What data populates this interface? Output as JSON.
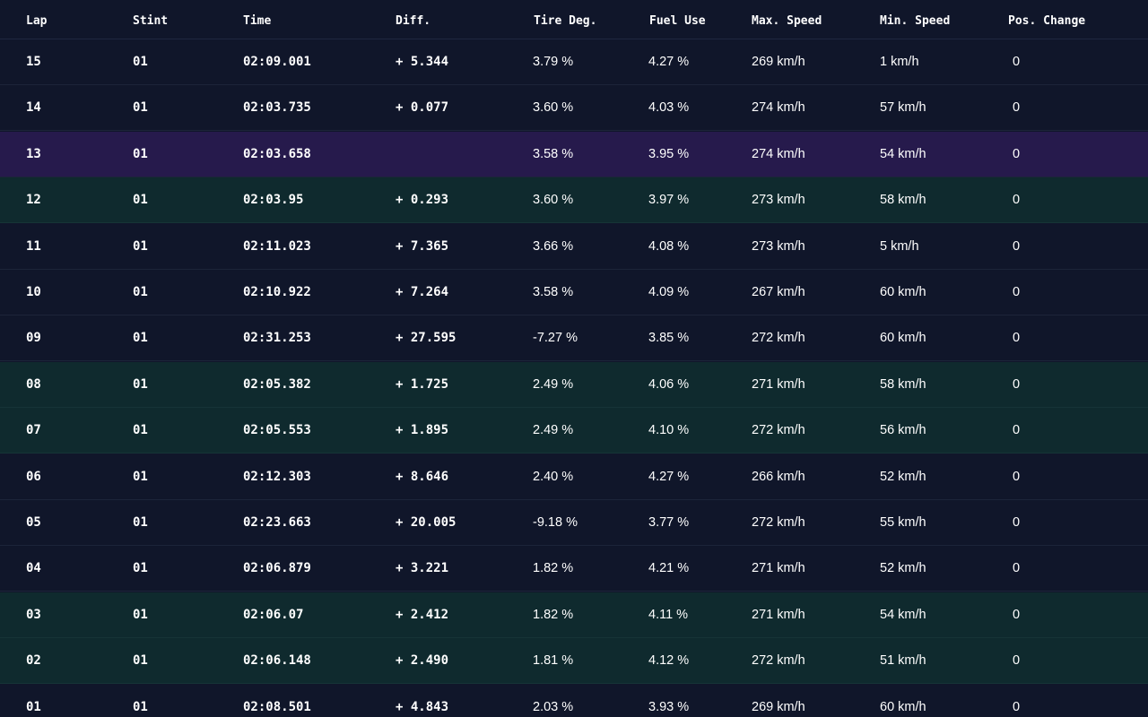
{
  "table": {
    "headers": {
      "lap": "Lap",
      "stint": "Stint",
      "time": "Time",
      "diff": "Diff.",
      "tire_deg": "Tire Deg.",
      "fuel_use": "Fuel Use",
      "max_speed": "Max. Speed",
      "min_speed": "Min. Speed",
      "pos_change": "Pos. Change"
    },
    "highlight_colors": {
      "fastest": "#261a4c",
      "improved": "#0f2a2e",
      "default": "#10162a"
    },
    "rows": [
      {
        "lap": "15",
        "stint": "01",
        "time": "02:09.001",
        "diff": "+ 5.344",
        "tire_deg": "3.79 %",
        "fuel_use": "4.27 %",
        "max_speed": "269 km/h",
        "min_speed": "1 km/h",
        "pos_change": "0",
        "highlight": "default"
      },
      {
        "lap": "14",
        "stint": "01",
        "time": "02:03.735",
        "diff": "+ 0.077",
        "tire_deg": "3.60 %",
        "fuel_use": "4.03 %",
        "max_speed": "274 km/h",
        "min_speed": "57 km/h",
        "pos_change": "0",
        "highlight": "default"
      },
      {
        "lap": "13",
        "stint": "01",
        "time": "02:03.658",
        "diff": "",
        "tire_deg": "3.58 %",
        "fuel_use": "3.95 %",
        "max_speed": "274 km/h",
        "min_speed": "54 km/h",
        "pos_change": "0",
        "highlight": "fastest"
      },
      {
        "lap": "12",
        "stint": "01",
        "time": "02:03.95",
        "diff": "+ 0.293",
        "tire_deg": "3.60 %",
        "fuel_use": "3.97 %",
        "max_speed": "273 km/h",
        "min_speed": "58 km/h",
        "pos_change": "0",
        "highlight": "improved"
      },
      {
        "lap": "11",
        "stint": "01",
        "time": "02:11.023",
        "diff": "+ 7.365",
        "tire_deg": "3.66 %",
        "fuel_use": "4.08 %",
        "max_speed": "273 km/h",
        "min_speed": "5 km/h",
        "pos_change": "0",
        "highlight": "default"
      },
      {
        "lap": "10",
        "stint": "01",
        "time": "02:10.922",
        "diff": "+ 7.264",
        "tire_deg": "3.58 %",
        "fuel_use": "4.09 %",
        "max_speed": "267 km/h",
        "min_speed": "60 km/h",
        "pos_change": "0",
        "highlight": "default"
      },
      {
        "lap": "09",
        "stint": "01",
        "time": "02:31.253",
        "diff": "+ 27.595",
        "tire_deg": "-7.27 %",
        "fuel_use": "3.85 %",
        "max_speed": "272 km/h",
        "min_speed": "60 km/h",
        "pos_change": "0",
        "highlight": "default"
      },
      {
        "lap": "08",
        "stint": "01",
        "time": "02:05.382",
        "diff": "+ 1.725",
        "tire_deg": "2.49 %",
        "fuel_use": "4.06 %",
        "max_speed": "271 km/h",
        "min_speed": "58 km/h",
        "pos_change": "0",
        "highlight": "improved"
      },
      {
        "lap": "07",
        "stint": "01",
        "time": "02:05.553",
        "diff": "+ 1.895",
        "tire_deg": "2.49 %",
        "fuel_use": "4.10 %",
        "max_speed": "272 km/h",
        "min_speed": "56 km/h",
        "pos_change": "0",
        "highlight": "improved"
      },
      {
        "lap": "06",
        "stint": "01",
        "time": "02:12.303",
        "diff": "+ 8.646",
        "tire_deg": "2.40 %",
        "fuel_use": "4.27 %",
        "max_speed": "266 km/h",
        "min_speed": "52 km/h",
        "pos_change": "0",
        "highlight": "default"
      },
      {
        "lap": "05",
        "stint": "01",
        "time": "02:23.663",
        "diff": "+ 20.005",
        "tire_deg": "-9.18 %",
        "fuel_use": "3.77 %",
        "max_speed": "272 km/h",
        "min_speed": "55 km/h",
        "pos_change": "0",
        "highlight": "default"
      },
      {
        "lap": "04",
        "stint": "01",
        "time": "02:06.879",
        "diff": "+ 3.221",
        "tire_deg": "1.82 %",
        "fuel_use": "4.21 %",
        "max_speed": "271 km/h",
        "min_speed": "52 km/h",
        "pos_change": "0",
        "highlight": "default"
      },
      {
        "lap": "03",
        "stint": "01",
        "time": "02:06.07",
        "diff": "+ 2.412",
        "tire_deg": "1.82 %",
        "fuel_use": "4.11 %",
        "max_speed": "271 km/h",
        "min_speed": "54 km/h",
        "pos_change": "0",
        "highlight": "improved"
      },
      {
        "lap": "02",
        "stint": "01",
        "time": "02:06.148",
        "diff": "+ 2.490",
        "tire_deg": "1.81 %",
        "fuel_use": "4.12 %",
        "max_speed": "272 km/h",
        "min_speed": "51 km/h",
        "pos_change": "0",
        "highlight": "improved"
      },
      {
        "lap": "01",
        "stint": "01",
        "time": "02:08.501",
        "diff": "+ 4.843",
        "tire_deg": "2.03 %",
        "fuel_use": "3.93 %",
        "max_speed": "269 km/h",
        "min_speed": "60 km/h",
        "pos_change": "0",
        "highlight": "default"
      }
    ]
  }
}
